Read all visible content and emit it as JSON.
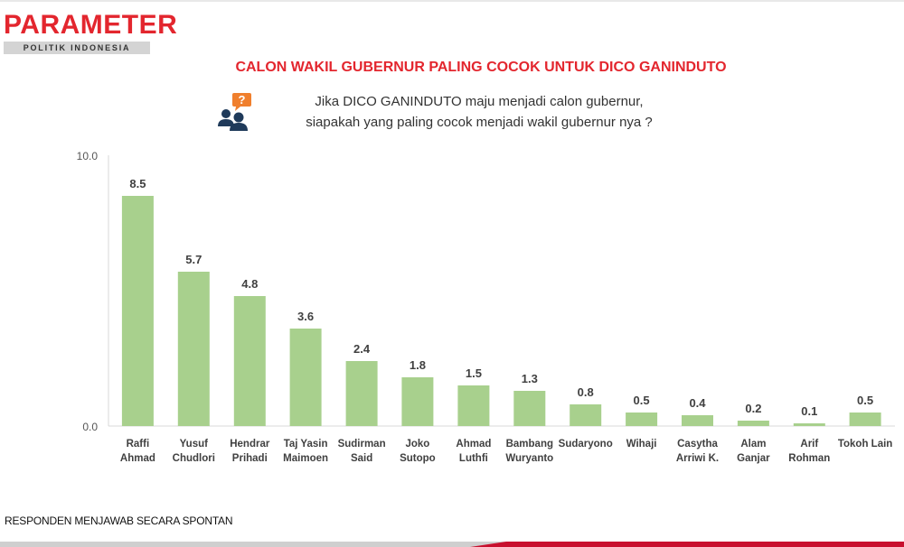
{
  "brand": {
    "name": "PARAMETER",
    "subtitle": "POLITIK INDONESIA"
  },
  "title": "CALON WAKIL GUBERNUR PALING COCOK UNTUK DICO GANINDUTO",
  "question": {
    "line1": "Jika DICO GANINDUTO maju menjadi calon gubernur,",
    "line2": "siapakah yang paling cocok menjadi wakil gubernur nya ?",
    "icon": "people-question-icon"
  },
  "footnote": "RESPONDEN MENJAWAB SECARA SPONTAN",
  "colors": {
    "accent": "#e3262e",
    "bar": "#a8d08d",
    "icon": "#1f3a5a",
    "bubble": "#f07f2d"
  },
  "chart_data": {
    "type": "bar",
    "title": "",
    "xlabel": "",
    "ylabel": "",
    "ylim": [
      0.0,
      10.0
    ],
    "yticks": [
      "0.0",
      "10.0"
    ],
    "grid": false,
    "legend": "none",
    "categories": [
      [
        "Raffi",
        "Ahmad"
      ],
      [
        "Yusuf",
        "Chudlori"
      ],
      [
        "Hendrar",
        "Prihadi"
      ],
      [
        "Taj Yasin",
        "Maimoen"
      ],
      [
        "Sudirman",
        "Said"
      ],
      [
        "Joko",
        "Sutopo"
      ],
      [
        "Ahmad",
        "Luthfi"
      ],
      [
        "Bambang",
        "Wuryanto"
      ],
      [
        "Sudaryono"
      ],
      [
        "Wihaji"
      ],
      [
        "Casytha",
        "Arriwi K."
      ],
      [
        "Alam",
        "Ganjar"
      ],
      [
        "Arif",
        "Rohman"
      ],
      [
        "Tokoh Lain"
      ]
    ],
    "values": [
      8.5,
      5.7,
      4.8,
      3.6,
      2.4,
      1.8,
      1.5,
      1.3,
      0.8,
      0.5,
      0.4,
      0.2,
      0.1,
      0.5
    ],
    "labels": [
      "8.5",
      "5.7",
      "4.8",
      "3.6",
      "2.4",
      "1.8",
      "1.5",
      "1.3",
      "0.8",
      "0.5",
      "0.4",
      "0.2",
      "0.1",
      "0.5"
    ]
  }
}
